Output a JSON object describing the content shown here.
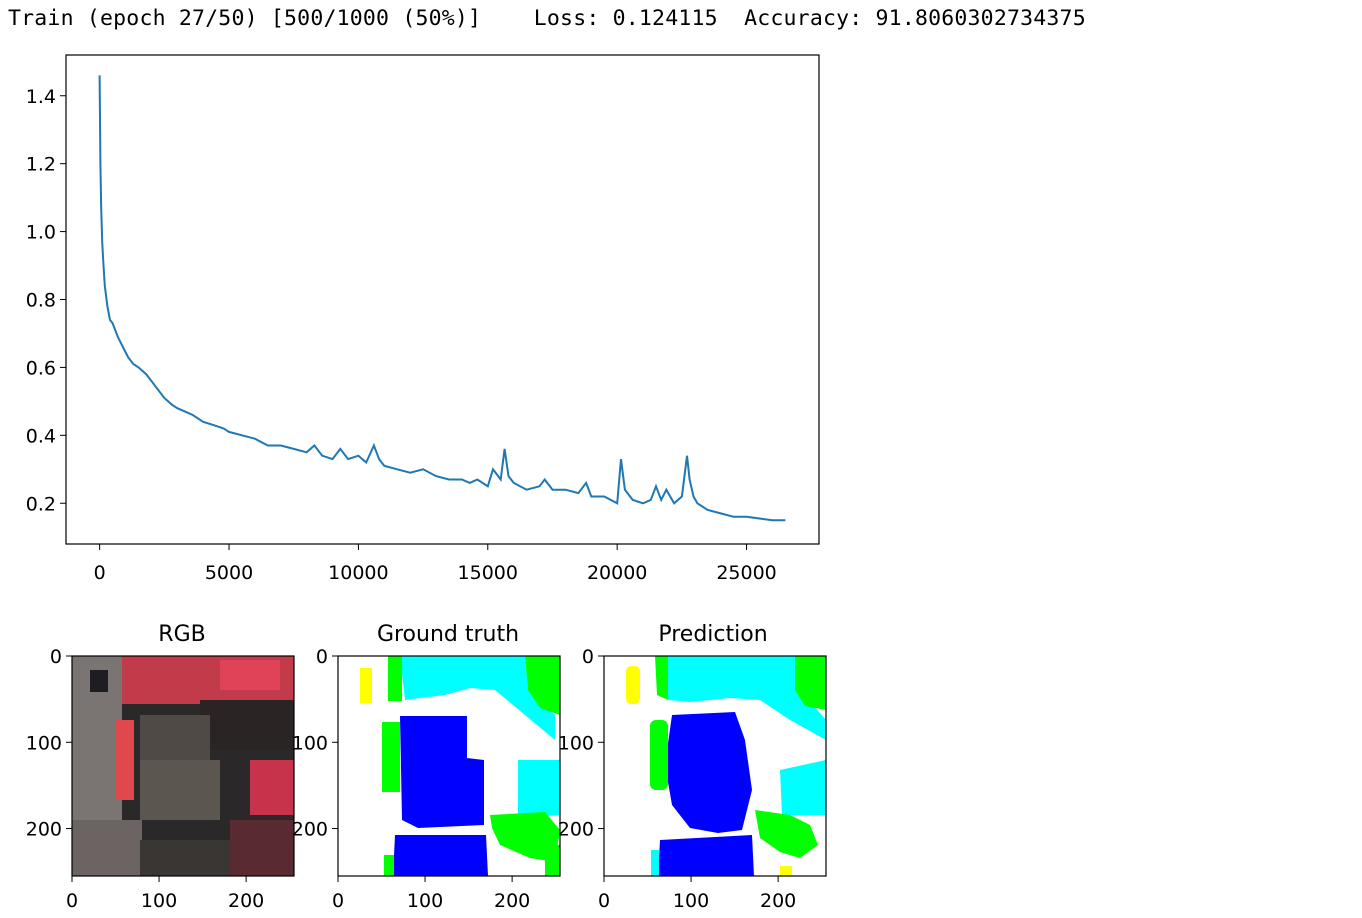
{
  "log": {
    "train_status": "Train (epoch 27/50) [500/1000 (50%)]",
    "loss": "Loss: 0.124115",
    "accuracy": "Accuracy: 91.8060302734375"
  },
  "chart_data": [
    {
      "type": "line",
      "title": "",
      "xlabel": "",
      "ylabel": "",
      "xlim": [
        -1300,
        27800
      ],
      "ylim": [
        0.08,
        1.52
      ],
      "xticks": [
        0,
        5000,
        10000,
        15000,
        20000,
        25000
      ],
      "xtick_labels": [
        "0",
        "5000",
        "10000",
        "15000",
        "20000",
        "25000"
      ],
      "yticks": [
        0.2,
        0.4,
        0.6,
        0.8,
        1.0,
        1.2,
        1.4
      ],
      "ytick_labels": [
        "0.2",
        "0.4",
        "0.6",
        "0.8",
        "1.0",
        "1.2",
        "1.4"
      ],
      "grid": false,
      "series": [
        {
          "color": "#1f77b4",
          "x": [
            0,
            30,
            60,
            100,
            150,
            200,
            300,
            400,
            500,
            700,
            900,
            1100,
            1300,
            1500,
            1800,
            2000,
            2200,
            2500,
            2800,
            3000,
            3300,
            3600,
            4000,
            4400,
            4800,
            5000,
            5500,
            6000,
            6500,
            7000,
            7500,
            8000,
            8300,
            8600,
            9000,
            9300,
            9600,
            10000,
            10300,
            10600,
            10800,
            11000,
            11500,
            12000,
            12500,
            13000,
            13500,
            14000,
            14300,
            14600,
            15000,
            15200,
            15500,
            15650,
            15800,
            16000,
            16500,
            17000,
            17200,
            17500,
            18000,
            18500,
            18800,
            19000,
            19500,
            20000,
            20150,
            20300,
            20600,
            21000,
            21300,
            21500,
            21700,
            21900,
            22200,
            22500,
            22700,
            22800,
            22950,
            23100,
            23500,
            24000,
            24500,
            25000,
            25500,
            26000,
            26500
          ],
          "y": [
            1.46,
            1.2,
            1.07,
            0.97,
            0.9,
            0.84,
            0.78,
            0.74,
            0.73,
            0.69,
            0.66,
            0.63,
            0.61,
            0.6,
            0.58,
            0.56,
            0.54,
            0.51,
            0.49,
            0.48,
            0.47,
            0.46,
            0.44,
            0.43,
            0.42,
            0.41,
            0.4,
            0.39,
            0.37,
            0.37,
            0.36,
            0.35,
            0.37,
            0.34,
            0.33,
            0.36,
            0.33,
            0.34,
            0.32,
            0.37,
            0.33,
            0.31,
            0.3,
            0.29,
            0.3,
            0.28,
            0.27,
            0.27,
            0.26,
            0.27,
            0.25,
            0.3,
            0.27,
            0.36,
            0.28,
            0.26,
            0.24,
            0.25,
            0.27,
            0.24,
            0.24,
            0.23,
            0.26,
            0.22,
            0.22,
            0.2,
            0.33,
            0.24,
            0.21,
            0.2,
            0.21,
            0.25,
            0.21,
            0.24,
            0.2,
            0.22,
            0.34,
            0.27,
            0.22,
            0.2,
            0.18,
            0.17,
            0.16,
            0.16,
            0.155,
            0.15,
            0.15
          ]
        }
      ]
    },
    {
      "type": "image",
      "title": "RGB",
      "xticks": [
        0,
        100,
        200
      ],
      "yticks": [
        0,
        100,
        200
      ],
      "xlim": [
        0,
        255
      ],
      "ylim": [
        255,
        0
      ]
    },
    {
      "type": "image",
      "title": "Ground truth",
      "xticks": [
        0,
        100,
        200
      ],
      "yticks": [
        0,
        100,
        200
      ],
      "xlim": [
        0,
        255
      ],
      "ylim": [
        255,
        0
      ]
    },
    {
      "type": "image",
      "title": "Prediction",
      "xticks": [
        0,
        100,
        200
      ],
      "yticks": [
        0,
        100,
        200
      ],
      "xlim": [
        0,
        255
      ],
      "ylim": [
        255,
        0
      ]
    }
  ],
  "colors": {
    "line": "#1f77b4",
    "class_road": "#ffffff",
    "class_building": "#0000ff",
    "class_vegetation": "#00ffff",
    "class_tree": "#00ff00",
    "class_car": "#ffff00",
    "rgb_red_vegetation": "#d63a4f",
    "rgb_dark": "#2a2828",
    "rgb_roof": "#5c5650",
    "rgb_gray": "#7a7473"
  }
}
